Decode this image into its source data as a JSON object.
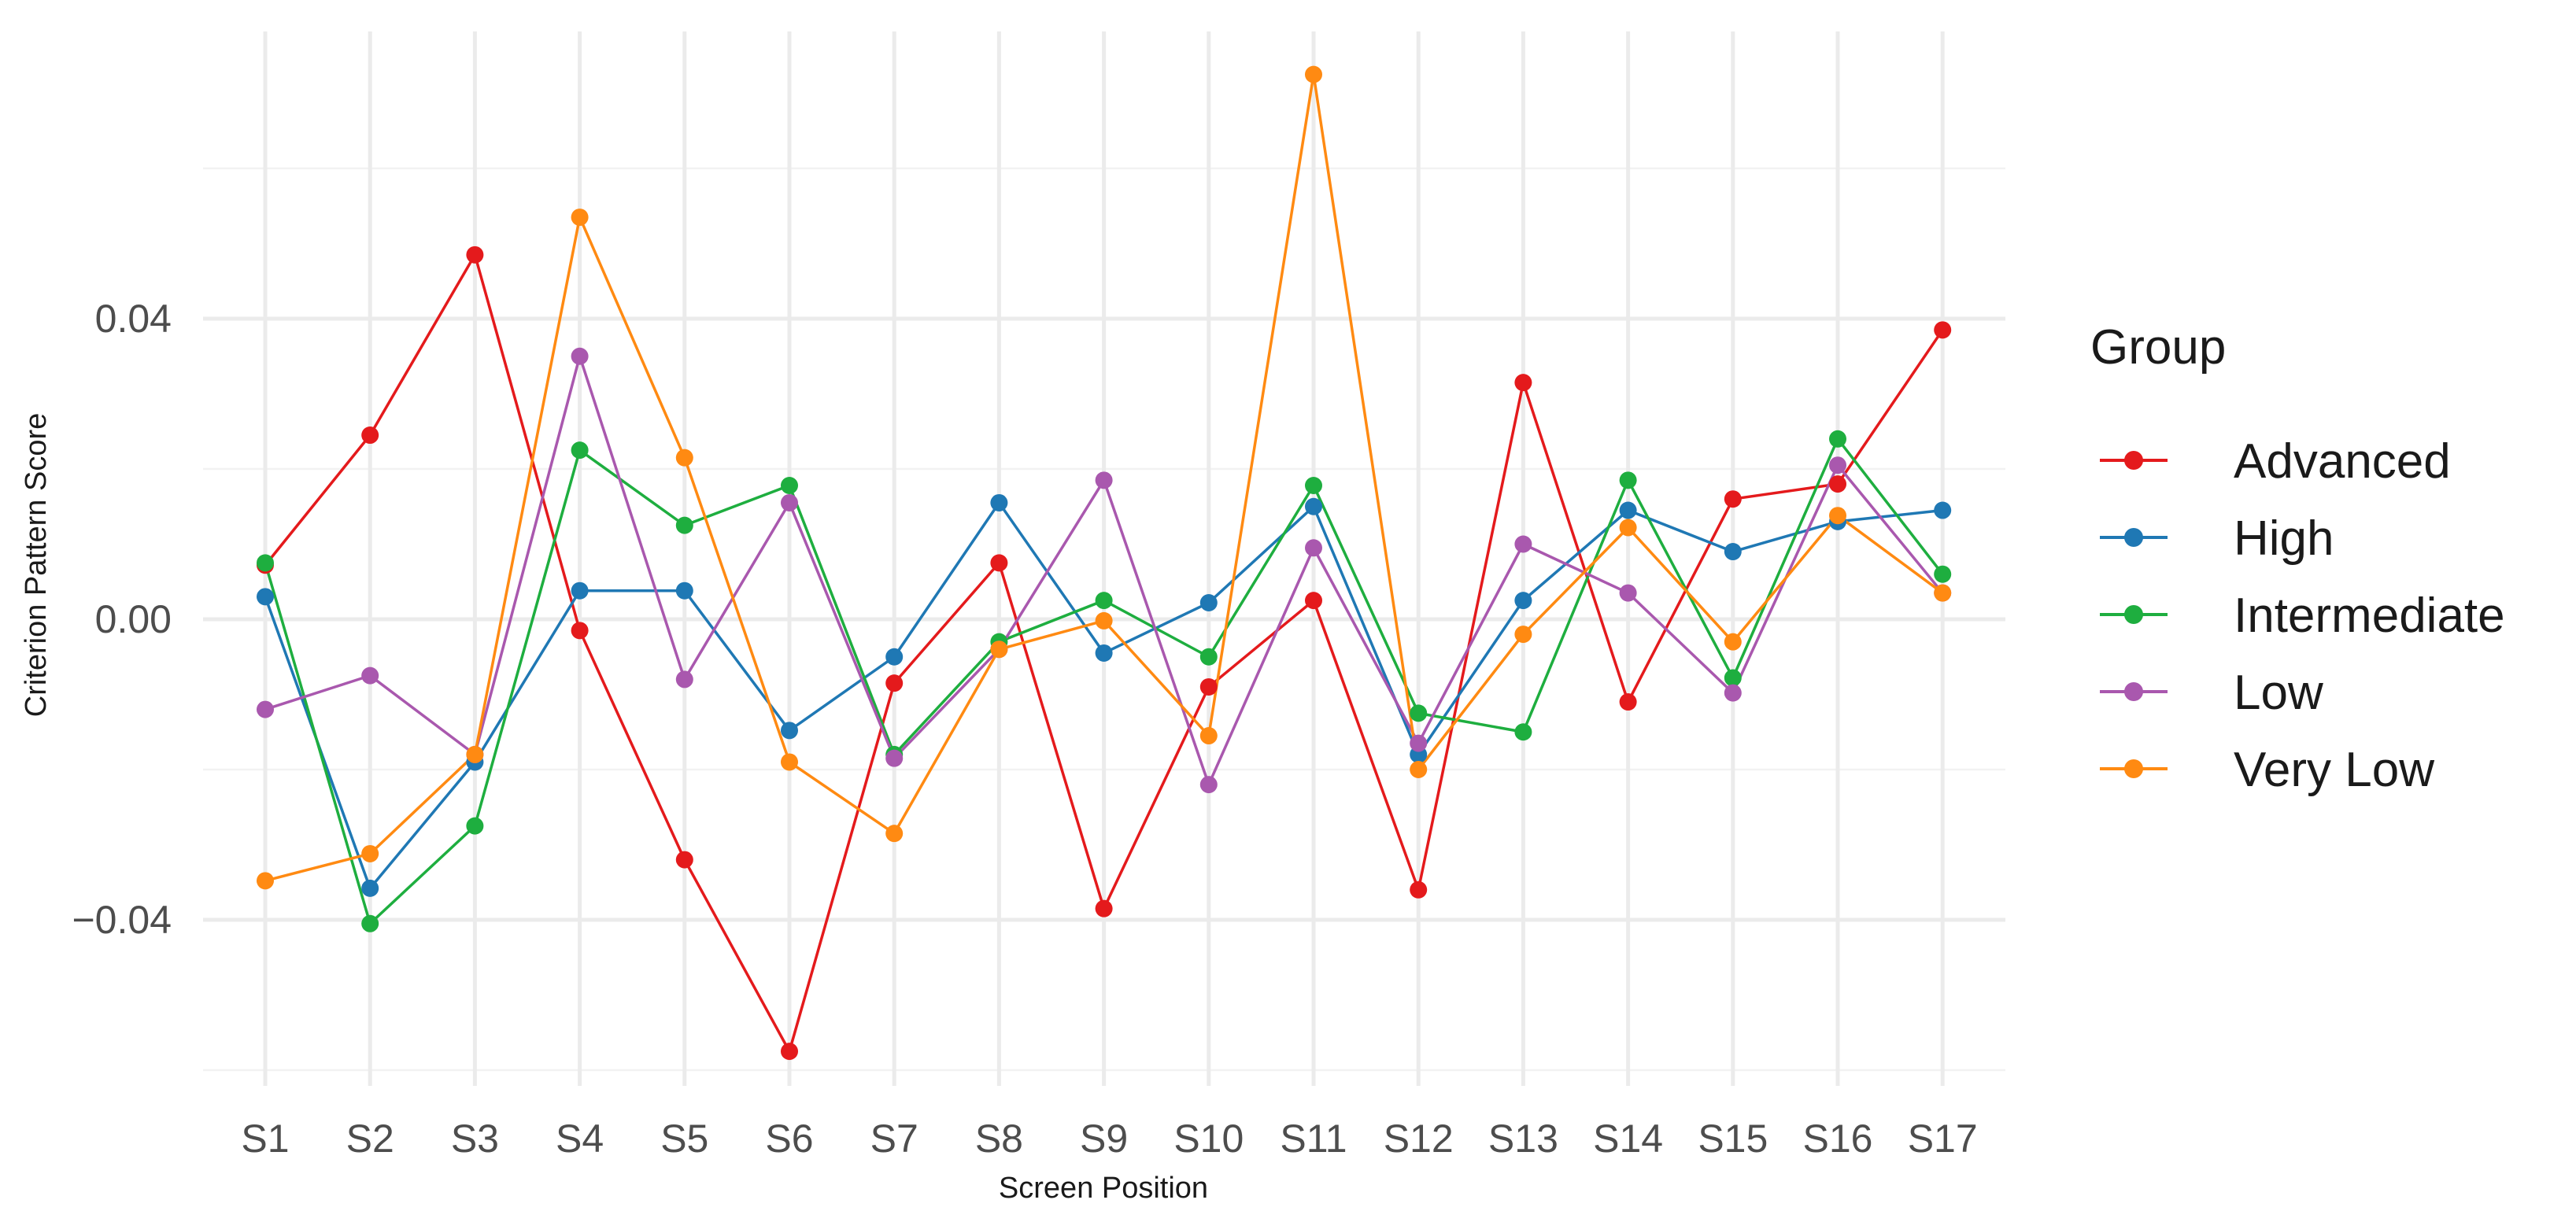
{
  "chart_data": {
    "type": "line",
    "title": "",
    "xlabel": "Screen Position",
    "ylabel": "Criterion Pattern Score",
    "ylim": [
      -0.06,
      0.08
    ],
    "yticks": [
      -0.04,
      0.0,
      0.04
    ],
    "ytick_labels": [
      "−0.04",
      "0.00",
      "0.04"
    ],
    "grid": true,
    "legend_title": "Group",
    "legend_position": "right",
    "categories": [
      "S1",
      "S2",
      "S3",
      "S4",
      "S5",
      "S6",
      "S7",
      "S8",
      "S9",
      "S10",
      "S11",
      "S12",
      "S13",
      "S14",
      "S15",
      "S16",
      "S17"
    ],
    "series": [
      {
        "name": "Advanced",
        "color": "#E41A1C",
        "values": [
          0.0072,
          0.0245,
          0.0485,
          -0.0015,
          -0.032,
          -0.0575,
          -0.0085,
          0.0075,
          -0.0385,
          -0.009,
          0.0025,
          -0.036,
          0.0315,
          -0.011,
          0.016,
          0.018,
          0.0385
        ]
      },
      {
        "name": "High",
        "color": "#1F78B4",
        "values": [
          0.003,
          -0.0358,
          -0.019,
          0.0038,
          0.0038,
          -0.0148,
          -0.005,
          0.0155,
          -0.0045,
          0.0022,
          0.015,
          -0.018,
          0.0025,
          0.0145,
          0.009,
          0.013,
          0.0145
        ]
      },
      {
        "name": "Intermediate",
        "color": "#1EAE3F",
        "values": [
          0.0075,
          -0.0405,
          -0.0275,
          0.0225,
          0.0125,
          0.0178,
          -0.018,
          -0.003,
          0.0025,
          -0.005,
          0.0178,
          -0.0125,
          -0.015,
          0.0185,
          -0.0078,
          0.024,
          0.006
        ]
      },
      {
        "name": "Low",
        "color": "#A958AE",
        "values": [
          -0.012,
          -0.0075,
          -0.018,
          0.035,
          -0.008,
          0.0155,
          -0.0185,
          -0.004,
          0.0185,
          -0.022,
          0.0095,
          -0.0165,
          0.01,
          0.0035,
          -0.0098,
          0.0205,
          0.0035
        ]
      },
      {
        "name": "Very Low",
        "color": "#FF8A12",
        "values": [
          -0.0348,
          -0.0312,
          -0.018,
          0.0535,
          0.0215,
          -0.019,
          -0.0285,
          -0.004,
          -0.0002,
          -0.0155,
          0.0725,
          -0.02,
          -0.002,
          0.0122,
          -0.003,
          0.0138,
          0.0035
        ]
      }
    ]
  }
}
